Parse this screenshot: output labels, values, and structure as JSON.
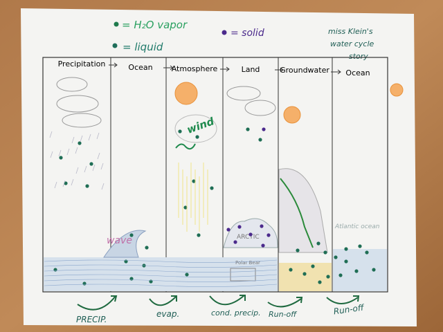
{
  "legend": {
    "vapor": "= H₂O vapor",
    "liquid": "= liquid",
    "solid": "= solid"
  },
  "title": {
    "line1": "miss Klein's",
    "line2": "water cycle",
    "line3": "story"
  },
  "columns": [
    "Precipitation",
    "Ocean",
    "Atmosphere",
    "Land",
    "Groundwater",
    "Ocean"
  ],
  "drawing_labels": {
    "wave": "wave",
    "wind": "wind",
    "arctic": "ARCTIC",
    "polar_bear": "Polar Bear",
    "atlantic": "Atlantic ocean"
  },
  "transitions": [
    "PRECIP.",
    "evap.",
    "cond. precip.",
    "Run-off",
    "Run-off"
  ]
}
